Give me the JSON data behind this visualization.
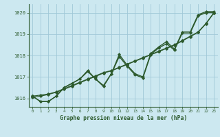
{
  "title": "Graphe pression niveau de la mer (hPa)",
  "background_color": "#cce8f0",
  "grid_color": "#a0c8d8",
  "line_color": "#2d5a2d",
  "xlim": [
    -0.5,
    23.5
  ],
  "ylim": [
    1015.6,
    1020.4
  ],
  "yticks": [
    1016,
    1017,
    1018,
    1019,
    1020
  ],
  "xticks": [
    0,
    1,
    2,
    3,
    4,
    5,
    6,
    7,
    8,
    9,
    10,
    11,
    12,
    13,
    14,
    15,
    16,
    17,
    18,
    19,
    20,
    21,
    22,
    23
  ],
  "series_jagged1": [
    1016.1,
    1015.85,
    1015.85,
    1016.1,
    1016.5,
    1016.7,
    1016.9,
    1017.3,
    1016.9,
    1016.6,
    1017.15,
    1018.05,
    1017.55,
    1017.15,
    1017.0,
    1018.1,
    1018.4,
    1018.65,
    1018.3,
    1019.1,
    1019.1,
    1019.9,
    1020.05,
    1020.05
  ],
  "series_jagged2": [
    1016.1,
    1015.85,
    1015.85,
    1016.1,
    1016.5,
    1016.7,
    1016.9,
    1017.25,
    1016.9,
    1016.55,
    1017.15,
    1017.95,
    1017.5,
    1017.1,
    1016.95,
    1018.05,
    1018.35,
    1018.55,
    1018.25,
    1019.05,
    1019.05,
    1019.85,
    1020.0,
    1020.0
  ],
  "series_smooth1": [
    1016.1,
    1016.15,
    1016.2,
    1016.3,
    1016.45,
    1016.6,
    1016.75,
    1016.9,
    1017.05,
    1017.2,
    1017.3,
    1017.45,
    1017.6,
    1017.75,
    1017.9,
    1018.05,
    1018.2,
    1018.35,
    1018.5,
    1018.7,
    1018.9,
    1019.1,
    1019.5,
    1020.0
  ],
  "series_smooth2": [
    1016.05,
    1016.1,
    1016.18,
    1016.28,
    1016.42,
    1016.57,
    1016.72,
    1016.88,
    1017.02,
    1017.18,
    1017.28,
    1017.43,
    1017.58,
    1017.73,
    1017.88,
    1018.03,
    1018.18,
    1018.33,
    1018.48,
    1018.68,
    1018.88,
    1019.08,
    1019.48,
    1019.98
  ]
}
